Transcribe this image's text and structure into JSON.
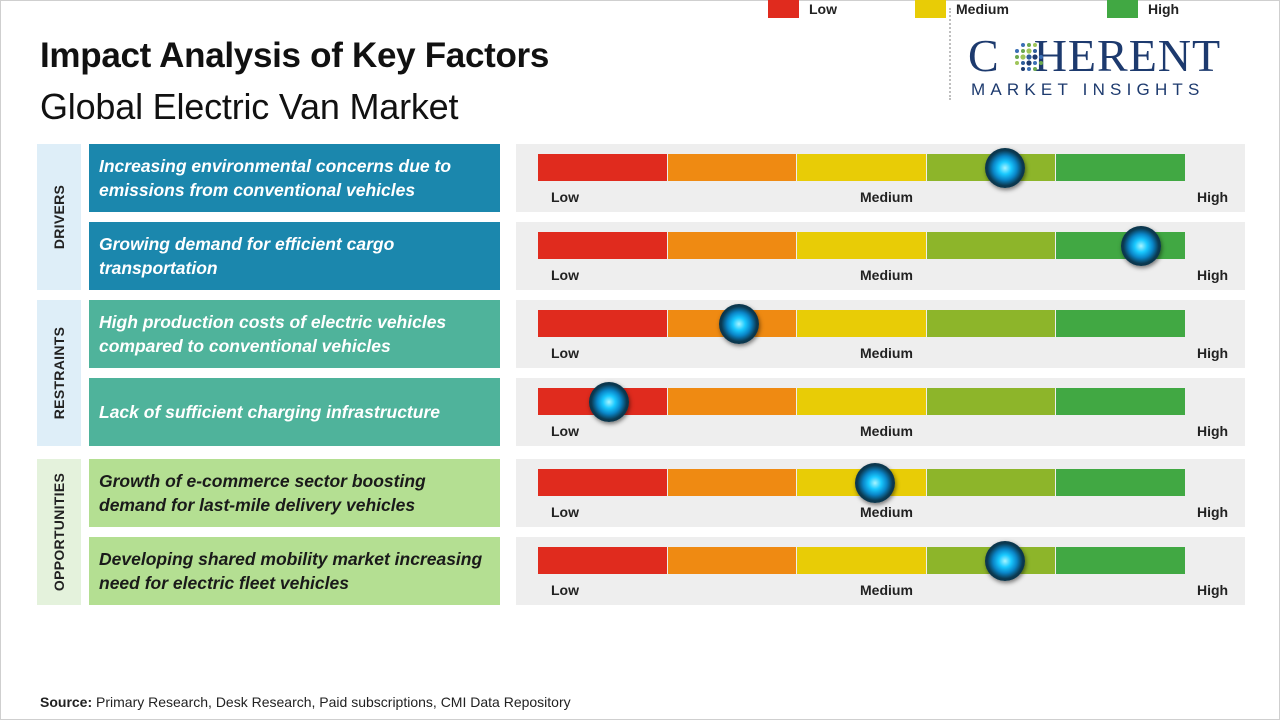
{
  "title": "Impact Analysis of Key Factors",
  "subtitle": "Global Electric Van Market",
  "logo": {
    "top": "COHERENT",
    "bottom": "MARKET INSIGHTS"
  },
  "colors": {
    "low": "#e02b1e",
    "low_mid": "#ef8a12",
    "medium": "#e8cc06",
    "mid_high": "#8db52a",
    "high": "#41a843",
    "drivers_label": "#deeef8",
    "drivers_factor": "#1b87ad",
    "restraints_label": "#deeef8",
    "restraints_factor": "#4fb39b",
    "opportunities_label": "#e4f2dc",
    "opportunities_factor": "#b4df92",
    "knob": "#0a86c8"
  },
  "chart_data": {
    "type": "impact-scale",
    "scale_labels": [
      "Low",
      "Medium",
      "High"
    ],
    "categories": [
      {
        "name": "DRIVERS",
        "factors": [
          {
            "label": "Increasing environmental concerns due to emissions from conventional vehicles",
            "impact": 0.72
          },
          {
            "label": "Growing demand for efficient cargo transportation",
            "impact": 0.93
          }
        ]
      },
      {
        "name": "RESTRAINTS",
        "factors": [
          {
            "label": "High production costs of electric vehicles compared to conventional vehicles",
            "impact": 0.31
          },
          {
            "label": "Lack of sufficient charging infrastructure",
            "impact": 0.11
          }
        ]
      },
      {
        "name": "OPPORTUNITIES",
        "factors": [
          {
            "label": "Growth of e-commerce sector boosting demand for last-mile delivery vehicles",
            "impact": 0.52
          },
          {
            "label": "Developing shared mobility market increasing need for electric fleet vehicles",
            "impact": 0.72
          }
        ]
      }
    ],
    "legend": [
      {
        "label": "Low",
        "color": "#e02b1e"
      },
      {
        "label": "Medium",
        "color": "#e8cc06"
      },
      {
        "label": "High",
        "color": "#41a843"
      }
    ]
  },
  "source": {
    "label": "Source:",
    "text": " Primary Research, Desk Research, Paid subscriptions, CMI Data Repository"
  }
}
